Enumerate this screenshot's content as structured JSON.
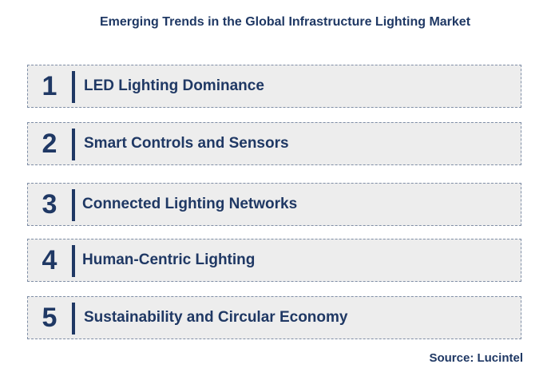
{
  "title": "Emerging Trends in the Global Infrastructure Lighting Market",
  "items": [
    {
      "number": "1",
      "label": "LED Lighting Dominance"
    },
    {
      "number": "2",
      "label": "Smart Controls and Sensors"
    },
    {
      "number": "3",
      "label": "Connected Lighting Networks"
    },
    {
      "number": "4",
      "label": "Human-Centric Lighting"
    },
    {
      "number": "5",
      "label": "Sustainability and Circular Economy"
    }
  ],
  "source": "Source: Lucintel"
}
